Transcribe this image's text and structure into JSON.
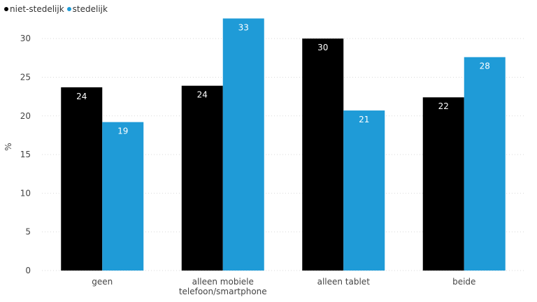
{
  "chart_data": {
    "type": "bar",
    "categories": [
      "geen",
      "alleen mobiele telefoon/smartphone",
      "alleen tablet",
      "beide"
    ],
    "category_lines": [
      [
        "geen"
      ],
      [
        "alleen mobiele",
        "telefoon/smartphone"
      ],
      [
        "alleen tablet"
      ],
      [
        "beide"
      ]
    ],
    "series": [
      {
        "name": "niet-stedelijk",
        "values": [
          23.7,
          23.9,
          30.0,
          22.4
        ],
        "labels": [
          "24",
          "24",
          "30",
          "22"
        ],
        "color": "#000000"
      },
      {
        "name": "stedelijk",
        "values": [
          19.2,
          32.6,
          20.7,
          27.6
        ],
        "labels": [
          "19",
          "33",
          "21",
          "28"
        ],
        "color": "#1f9bd7"
      }
    ],
    "ylabel": "%",
    "ylim": [
      0,
      33
    ],
    "yticks": [
      0,
      5,
      10,
      15,
      20,
      25,
      30
    ],
    "grid": true,
    "legend_position": "top-left"
  }
}
